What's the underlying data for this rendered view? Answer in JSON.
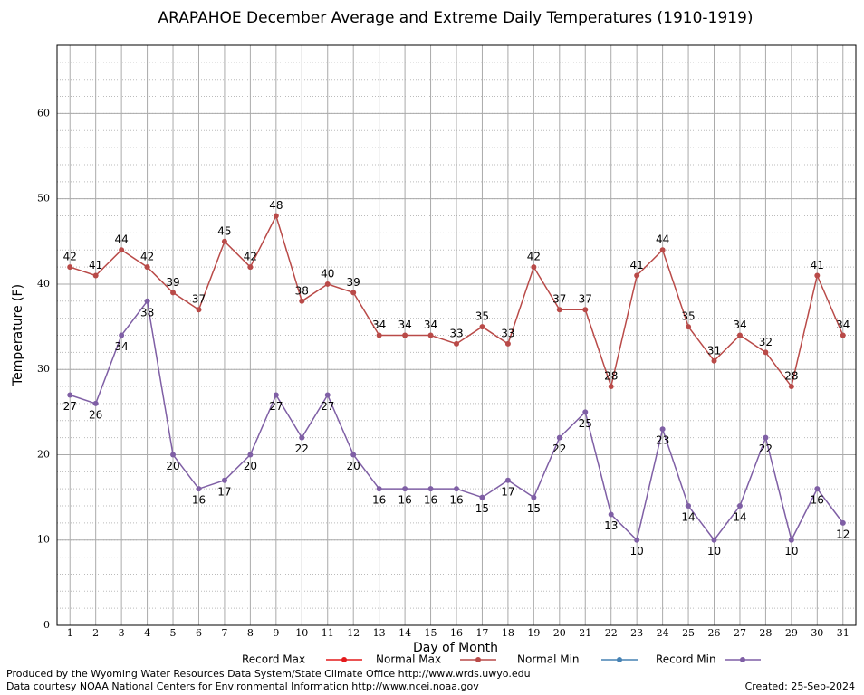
{
  "chart_data": {
    "type": "line",
    "title": "ARAPAHOE December Average and Extreme Daily Temperatures (1910-1919)",
    "xlabel": "Day of Month",
    "ylabel": "Temperature (F)",
    "x": [
      1,
      2,
      3,
      4,
      5,
      6,
      7,
      8,
      9,
      10,
      11,
      12,
      13,
      14,
      15,
      16,
      17,
      18,
      19,
      20,
      21,
      22,
      23,
      24,
      25,
      26,
      27,
      28,
      29,
      30,
      31
    ],
    "xlim": [
      0.5,
      31.5
    ],
    "xticks": [
      1,
      2,
      3,
      4,
      5,
      6,
      7,
      8,
      9,
      10,
      11,
      12,
      13,
      14,
      15,
      16,
      17,
      18,
      19,
      20,
      21,
      22,
      23,
      24,
      25,
      26,
      27,
      28,
      29,
      30,
      31
    ],
    "ylim": [
      0,
      68
    ],
    "yticks": [
      0,
      10,
      20,
      30,
      40,
      50,
      60
    ],
    "grid": true,
    "series": [
      {
        "name": "Record Max",
        "color": "#e41a1c",
        "values": [
          null,
          null,
          null,
          null,
          null,
          null,
          null,
          null,
          null,
          null,
          null,
          null,
          null,
          null,
          null,
          null,
          null,
          null,
          null,
          null,
          null,
          null,
          null,
          null,
          null,
          null,
          null,
          null,
          null,
          null,
          null
        ]
      },
      {
        "name": "Normal Max",
        "color": "#b94a48",
        "label_side": "above",
        "values": [
          42,
          41,
          44,
          42,
          39,
          37,
          45,
          42,
          48,
          38,
          40,
          39,
          34,
          34,
          34,
          33,
          35,
          33,
          42,
          37,
          37,
          28,
          41,
          44,
          35,
          31,
          34,
          32,
          28,
          41,
          34
        ]
      },
      {
        "name": "Normal Min",
        "color": "#4682b4",
        "values": [
          null,
          null,
          null,
          null,
          null,
          null,
          null,
          null,
          null,
          null,
          null,
          null,
          null,
          null,
          null,
          null,
          null,
          null,
          null,
          null,
          null,
          null,
          null,
          null,
          null,
          null,
          null,
          null,
          null,
          null,
          null
        ]
      },
      {
        "name": "Record Min",
        "color": "#7f5fa5",
        "label_side": "below",
        "values": [
          27,
          26,
          34,
          38,
          20,
          16,
          17,
          20,
          27,
          22,
          27,
          20,
          16,
          16,
          16,
          16,
          15,
          17,
          15,
          22,
          25,
          13,
          10,
          23,
          14,
          10,
          14,
          22,
          10,
          16,
          12
        ]
      }
    ],
    "footer": [
      "Produced by the Wyoming Water Resources Data System/State Climate Office http://www.wrds.uwyo.edu",
      "Data courtesy NOAA National Centers for Environmental Information http://www.ncei.noaa.gov"
    ],
    "created": "Created:  25-Sep-2024"
  }
}
